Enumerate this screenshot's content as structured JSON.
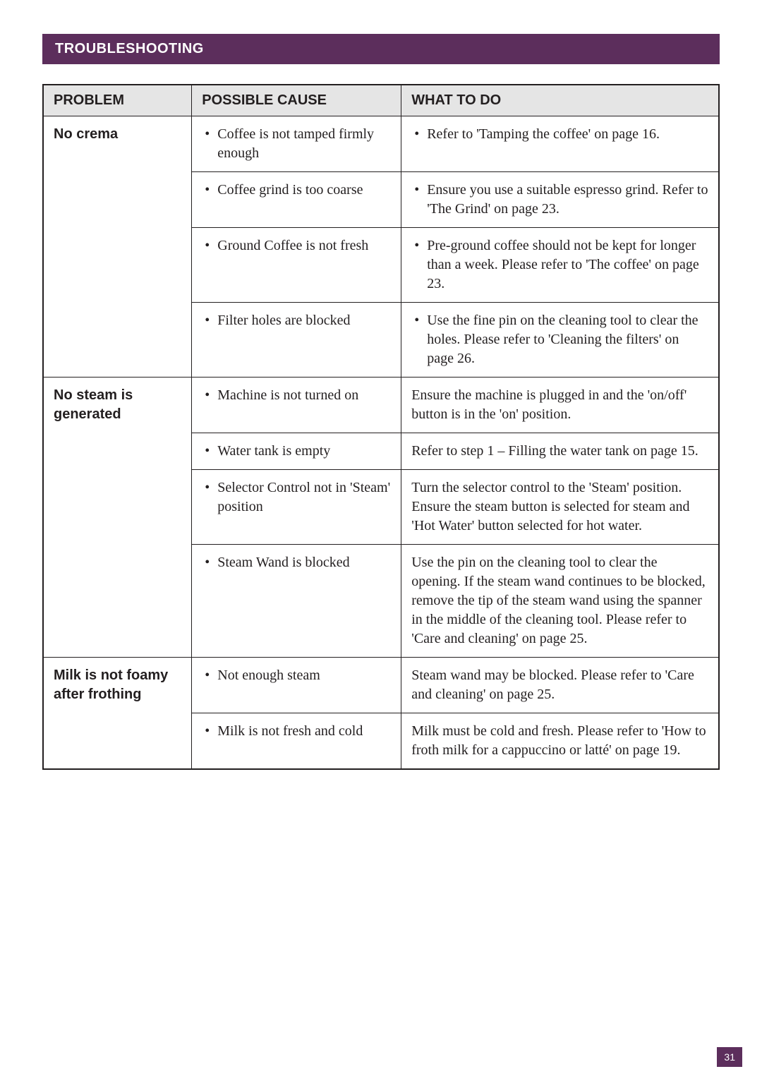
{
  "section_title": "TROUBLESHOOTING",
  "page_number": "31",
  "columns": {
    "problem": "PROBLEM",
    "cause": "POSSIBLE CAUSE",
    "action": "WHAT TO DO"
  },
  "colors": {
    "brand_purple": "#5c2e5c",
    "header_grey": "#e5e5e5",
    "text": "#231f20",
    "white": "#ffffff"
  },
  "rows": [
    {
      "problem": "No crema",
      "problem_rowspan": 4,
      "cause": "Coffee is not tamped firmly enough",
      "cause_bulleted": true,
      "action": "Refer to 'Tamping the coffee' on page 16.",
      "action_bulleted": true
    },
    {
      "cause": "Coffee grind is too coarse",
      "cause_bulleted": true,
      "action": "Ensure you use a suitable espresso grind. Refer to 'The Grind' on page 23.",
      "action_bulleted": true
    },
    {
      "cause": "Ground Coffee is not fresh",
      "cause_bulleted": true,
      "action": "Pre-ground coffee should not be kept for longer than a week. Please refer to 'The coffee' on page 23.",
      "action_bulleted": true
    },
    {
      "cause": "Filter holes are blocked",
      "cause_bulleted": true,
      "action": "Use the fine pin on the cleaning tool to clear the holes. Please refer to 'Cleaning the filters' on page 26.",
      "action_bulleted": true
    },
    {
      "problem": "No steam is generated",
      "problem_rowspan": 4,
      "cause": "Machine is not turned on",
      "cause_bulleted": true,
      "action": "Ensure the machine is plugged in and the 'on/off' button is in the 'on' position.",
      "action_bulleted": false
    },
    {
      "cause": "Water tank is empty",
      "cause_bulleted": true,
      "action": "Refer to step 1 – Filling the water tank on page 15.",
      "action_bulleted": false
    },
    {
      "cause": "Selector Control not in 'Steam' position",
      "cause_bulleted": true,
      "action": "Turn the selector control to the 'Steam' position. Ensure the steam button is selected for steam and 'Hot Water' button selected for hot water.",
      "action_bulleted": false
    },
    {
      "cause": "Steam Wand is blocked",
      "cause_bulleted": true,
      "action": "Use the pin on the cleaning tool to clear the opening. If the steam wand continues to be blocked, remove the tip of the steam wand using the spanner in the middle of the cleaning tool. Please refer to 'Care and cleaning' on page 25.",
      "action_bulleted": false
    },
    {
      "problem": "Milk is not foamy after frothing",
      "problem_rowspan": 2,
      "cause": "Not enough steam",
      "cause_bulleted": true,
      "action": "Steam wand may be blocked. Please refer to 'Care and cleaning' on page 25.",
      "action_bulleted": false
    },
    {
      "cause": "Milk is not fresh and cold",
      "cause_bulleted": true,
      "action": "Milk must be cold and fresh. Please refer to 'How to froth milk for a cappuccino or latté' on page 19.",
      "action_bulleted": false
    }
  ]
}
